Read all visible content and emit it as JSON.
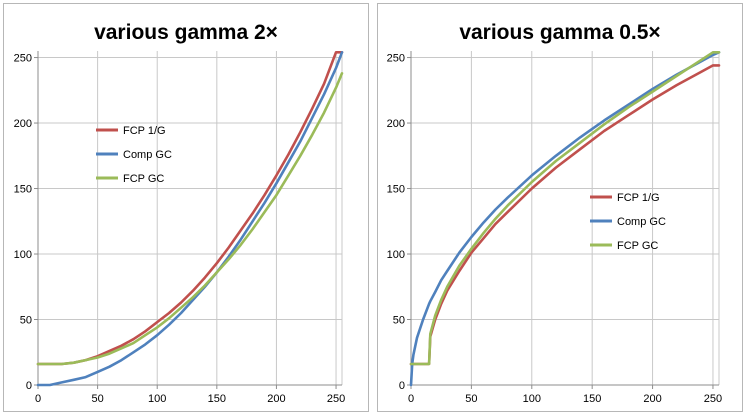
{
  "chart_data": [
    {
      "type": "line",
      "title": "various gamma 2×",
      "xlim": [
        0,
        255
      ],
      "ylim": [
        0,
        255
      ],
      "x_ticks": [
        "0",
        "50",
        "100",
        "150",
        "200",
        "250"
      ],
      "y_ticks": [
        "0",
        "50",
        "100",
        "150",
        "200",
        "250"
      ],
      "grid": true,
      "legend_position": "left-middle",
      "x": [
        0,
        10,
        20,
        30,
        40,
        50,
        60,
        70,
        80,
        90,
        100,
        110,
        120,
        130,
        140,
        150,
        160,
        170,
        180,
        190,
        200,
        210,
        220,
        230,
        240,
        250,
        255
      ],
      "series": [
        {
          "name": "FCP 1/G",
          "color": "#c0504d",
          "values": [
            16,
            16,
            16,
            17,
            19,
            22,
            26,
            30,
            35,
            41,
            48,
            55,
            63,
            72,
            82,
            93,
            105,
            118,
            131,
            145,
            160,
            176,
            193,
            211,
            230,
            254,
            254
          ]
        },
        {
          "name": "Comp GC",
          "color": "#4f81bd",
          "values": [
            0,
            0,
            2,
            4,
            6,
            10,
            14,
            19,
            25,
            31,
            38,
            46,
            55,
            65,
            75,
            86,
            98,
            111,
            125,
            139,
            154,
            170,
            186,
            204,
            222,
            242,
            254
          ]
        },
        {
          "name": "FCP GC",
          "color": "#9bbb59",
          "values": [
            16,
            16,
            16,
            17,
            19,
            21,
            24,
            28,
            32,
            38,
            44,
            51,
            59,
            67,
            76,
            86,
            96,
            107,
            119,
            132,
            145,
            160,
            175,
            191,
            208,
            227,
            238
          ]
        }
      ]
    },
    {
      "type": "line",
      "title": "various gamma 0.5×",
      "xlim": [
        0,
        255
      ],
      "ylim": [
        0,
        255
      ],
      "x_ticks": [
        "0",
        "50",
        "100",
        "150",
        "200",
        "250"
      ],
      "y_ticks": [
        "0",
        "50",
        "100",
        "150",
        "200",
        "250"
      ],
      "grid": true,
      "legend_position": "right-middle",
      "x": [
        0,
        1,
        2,
        5,
        10,
        15,
        16,
        20,
        25,
        30,
        40,
        50,
        60,
        70,
        80,
        100,
        120,
        140,
        160,
        180,
        200,
        220,
        240,
        250,
        255
      ],
      "series": [
        {
          "name": "FCP 1/G",
          "color": "#c0504d",
          "values": [
            16,
            16,
            16,
            16,
            16,
            16,
            37,
            50,
            62,
            72,
            87,
            101,
            112,
            123,
            132,
            150,
            166,
            180,
            194,
            206,
            218,
            229,
            239,
            244,
            244
          ]
        },
        {
          "name": "Comp GC",
          "color": "#4f81bd",
          "values": [
            0,
            16,
            23,
            36,
            50,
            62,
            64,
            71,
            80,
            87,
            101,
            113,
            124,
            134,
            143,
            160,
            175,
            189,
            202,
            214,
            226,
            237,
            247,
            252,
            254
          ]
        },
        {
          "name": "FCP GC",
          "color": "#9bbb59",
          "values": [
            16,
            16,
            16,
            16,
            16,
            16,
            39,
            53,
            65,
            75,
            91,
            104,
            116,
            127,
            137,
            155,
            171,
            185,
            199,
            212,
            224,
            236,
            248,
            254,
            254
          ]
        }
      ]
    }
  ]
}
